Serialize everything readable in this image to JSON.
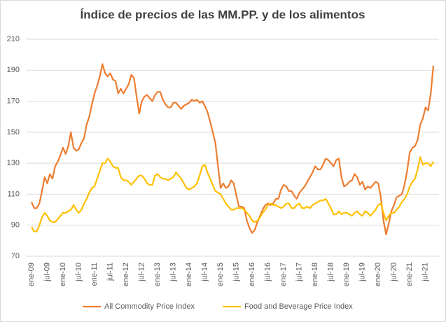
{
  "chart_data": {
    "type": "line",
    "title": "Índice de precios de las MM.PP. y de los alimentos",
    "categories": [
      "ene-09",
      null,
      null,
      null,
      null,
      null,
      "jul-09",
      null,
      null,
      null,
      null,
      null,
      "ene-10",
      null,
      null,
      null,
      null,
      null,
      "jul-10",
      null,
      null,
      null,
      null,
      null,
      "ene-11",
      null,
      null,
      null,
      null,
      null,
      "jul-11",
      null,
      null,
      null,
      null,
      null,
      "ene-12",
      null,
      null,
      null,
      null,
      null,
      "jul-12",
      null,
      null,
      null,
      null,
      null,
      "ene-13",
      null,
      null,
      null,
      null,
      null,
      "jul-13",
      null,
      null,
      null,
      null,
      null,
      "ene-14",
      null,
      null,
      null,
      null,
      null,
      "jul-14",
      null,
      null,
      null,
      null,
      null,
      "ene-15",
      null,
      null,
      null,
      null,
      null,
      "jul-15",
      null,
      null,
      null,
      null,
      null,
      "ene-16",
      null,
      null,
      null,
      null,
      null,
      "jul-16",
      null,
      null,
      null,
      null,
      null,
      "ene-17",
      null,
      null,
      null,
      null,
      null,
      "jul-17",
      null,
      null,
      null,
      null,
      null,
      "ene-18",
      null,
      null,
      null,
      null,
      null,
      "jul-18",
      null,
      null,
      null,
      null,
      null,
      "ene-19",
      null,
      null,
      null,
      null,
      null,
      "jul-19",
      null,
      null,
      null,
      null,
      null,
      "ene-20",
      null,
      null,
      null,
      null,
      null,
      "jul-20",
      null,
      null,
      null,
      null,
      null,
      "ene-21",
      null,
      null,
      null,
      null,
      null,
      "jul-21",
      null,
      null,
      null
    ],
    "series": [
      {
        "name": "All Commodity Price Index",
        "color": "#ed7d31",
        "values": [
          105,
          101,
          101,
          104,
          112,
          121,
          117,
          123,
          120,
          128,
          131,
          135,
          140,
          136,
          141,
          150,
          140,
          138,
          139,
          143,
          146,
          155,
          160,
          168,
          175,
          180,
          186,
          194,
          188,
          186,
          188,
          184,
          183,
          175,
          178,
          175,
          178,
          181,
          187,
          185,
          173,
          162,
          170,
          173,
          174,
          172,
          170,
          174,
          176,
          176,
          171,
          168,
          166,
          166,
          169,
          169,
          167,
          165,
          167,
          168,
          169,
          171,
          170,
          171,
          169,
          170,
          167,
          163,
          157,
          150,
          143,
          128,
          114,
          117,
          114,
          115,
          119,
          117,
          109,
          102,
          102,
          101,
          93,
          88,
          85,
          87,
          92,
          96,
          100,
          103,
          104,
          103,
          104,
          107,
          107,
          113,
          116,
          115,
          112,
          112,
          109,
          107,
          111,
          113,
          115,
          118,
          121,
          124,
          128,
          126,
          126,
          129,
          133,
          132,
          130,
          128,
          132,
          133,
          121,
          115,
          116,
          118,
          119,
          123,
          121,
          116,
          118,
          113,
          115,
          114,
          116,
          118,
          117,
          108,
          93,
          84,
          91,
          99,
          103,
          108,
          109,
          110,
          116,
          125,
          137,
          140,
          141,
          145,
          155,
          159,
          166,
          164,
          175,
          193
        ]
      },
      {
        "name": "Food and Beverage Price Index",
        "color": "#ffc000",
        "values": [
          89,
          86,
          86,
          90,
          95,
          98,
          96,
          93,
          92,
          92,
          94,
          96,
          98,
          98,
          99,
          100,
          103,
          100,
          98,
          100,
          104,
          107,
          111,
          114,
          115,
          120,
          125,
          130,
          130,
          133,
          131,
          128,
          127,
          127,
          121,
          119,
          119,
          118,
          116,
          118,
          120,
          122,
          122,
          120,
          117,
          116,
          116,
          122,
          123,
          121,
          120,
          120,
          119,
          120,
          121,
          124,
          122,
          120,
          117,
          114,
          113,
          114,
          115,
          117,
          122,
          128,
          129,
          124,
          120,
          116,
          112,
          111,
          110,
          107,
          104,
          102,
          100,
          100,
          101,
          101,
          101,
          100,
          98,
          96,
          93,
          92,
          93,
          95,
          98,
          100,
          103,
          104,
          103,
          103,
          102,
          101,
          102,
          104,
          104,
          101,
          101,
          103,
          104,
          101,
          101,
          102,
          101,
          103,
          104,
          105,
          106,
          106,
          107,
          104,
          101,
          97,
          97,
          99,
          97,
          98,
          98,
          97,
          96,
          98,
          99,
          97,
          96,
          99,
          98,
          96,
          98,
          100,
          103,
          104,
          98,
          93,
          96,
          98,
          98,
          100,
          102,
          105,
          107,
          110,
          115,
          118,
          120,
          126,
          134,
          129,
          130,
          130,
          128,
          131
        ]
      }
    ],
    "ylim": [
      70,
      210
    ],
    "yticks": [
      70,
      90,
      110,
      130,
      150,
      170,
      190,
      210
    ],
    "grid": true,
    "legend": "bottom"
  }
}
